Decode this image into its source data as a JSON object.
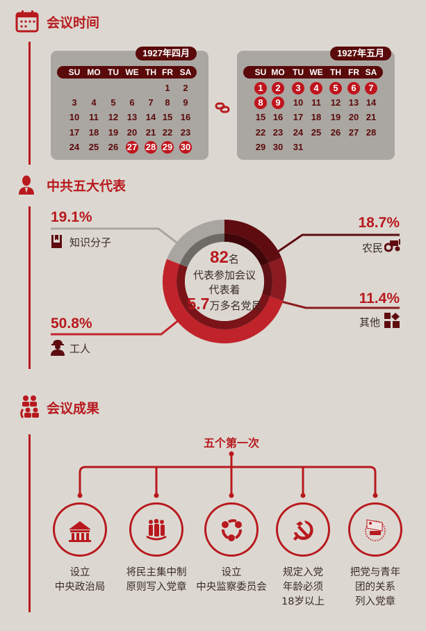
{
  "sections": {
    "time": "会议时间",
    "delegates": "中共五大代表",
    "results": "会议成果"
  },
  "colors": {
    "accent": "#b8191e",
    "dark": "#5a0a0a",
    "gray": "#aaa7a2"
  },
  "weekdays": [
    "SU",
    "MO",
    "TU",
    "WE",
    "TH",
    "FR",
    "SA"
  ],
  "calendars": [
    {
      "label": "1927年四月",
      "start_weekday": 5,
      "days": 30,
      "highlighted": [
        27,
        28,
        29,
        30
      ]
    },
    {
      "label": "1927年五月",
      "start_weekday": 0,
      "days": 31,
      "highlighted": [
        1,
        2,
        3,
        4,
        5,
        6,
        7,
        8,
        9
      ]
    }
  ],
  "center": {
    "count": "82",
    "count_unit": "名",
    "line1": "代表参加会议",
    "line2": "代表着",
    "members": "5.7",
    "members_unit": "万多名党员"
  },
  "chart_data": {
    "type": "pie",
    "donut": true,
    "categories": [
      "农民",
      "其他",
      "工人",
      "知识分子"
    ],
    "values": [
      18.7,
      11.4,
      50.8,
      19.1
    ],
    "labels": [
      "18.7%",
      "11.4%",
      "50.8%",
      "19.1%"
    ],
    "colors": [
      "#5e0c10",
      "#8b1b20",
      "#c1232b",
      "#a9a6a1"
    ],
    "inner_colors": [
      "#3f070a",
      "#5e1014",
      "#7a1418",
      "#6e6b67"
    ]
  },
  "legend": {
    "intellectuals": {
      "pct": "19.1%",
      "label": "知识分子",
      "icon": "book-icon"
    },
    "farmers": {
      "pct": "18.7%",
      "label": "农民",
      "icon": "tractor-icon"
    },
    "others": {
      "pct": "11.4%",
      "label": "其他",
      "icon": "grid-icon"
    },
    "workers": {
      "pct": "50.8%",
      "label": "工人",
      "icon": "worker-icon"
    }
  },
  "results": {
    "title": "五个第一次",
    "items": [
      {
        "lines": [
          "设立",
          "中央政治局"
        ],
        "icon": "building-icon"
      },
      {
        "lines": [
          "将民主集中制",
          "原则写入党章"
        ],
        "icon": "people-icon"
      },
      {
        "lines": [
          "设立",
          "中央监察委员会"
        ],
        "icon": "cycle-icon"
      },
      {
        "lines": [
          "规定入党",
          "年龄必须",
          "18岁以上"
        ],
        "icon": "hammer-sickle-icon"
      },
      {
        "lines": [
          "把党与青年",
          "团的关系",
          "列入党章"
        ],
        "icon": "youth-league-badge-icon"
      }
    ]
  }
}
